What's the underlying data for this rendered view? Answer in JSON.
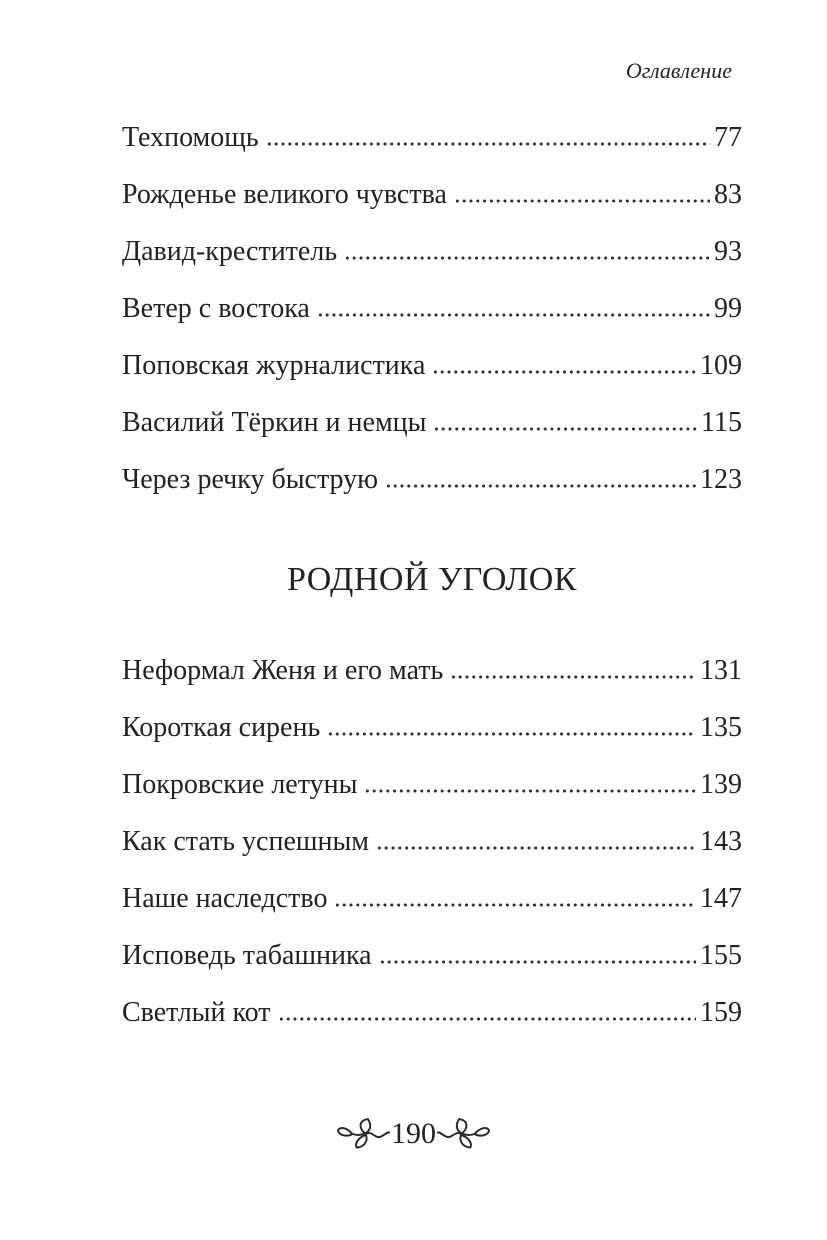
{
  "colors": {
    "background": "#ffffff",
    "text": "#222222",
    "leader_dots": "#2b2b2b"
  },
  "running_head": {
    "label": "Оглавление"
  },
  "toc": {
    "sections": [
      {
        "heading": "",
        "entries": [
          {
            "title": "Техпомощь",
            "page": "77"
          },
          {
            "title": "Рожденье великого чувства",
            "page": "83"
          },
          {
            "title": "Давид-креститель",
            "page": "93"
          },
          {
            "title": "Ветер с востока",
            "page": "99"
          },
          {
            "title": "Поповская журналистика",
            "page": "109"
          },
          {
            "title": "Василий Тёркин и немцы",
            "page": "115"
          },
          {
            "title": "Через речку быструю",
            "page": "123"
          }
        ]
      },
      {
        "heading": "РОДНОЙ УГОЛОК",
        "entries": [
          {
            "title": "Неформал Женя и его мать",
            "page": "131"
          },
          {
            "title": "Короткая сирень",
            "page": "135"
          },
          {
            "title": "Покровские летуны",
            "page": "139"
          },
          {
            "title": "Как стать успешным",
            "page": "143"
          },
          {
            "title": "Наше наследство",
            "page": "147"
          },
          {
            "title": "Исповедь табашника",
            "page": "155"
          },
          {
            "title": "Светлый кот",
            "page": "159"
          }
        ]
      }
    ]
  },
  "footer": {
    "page_number": "190",
    "ornament_icon": "leaf-fleuron"
  }
}
